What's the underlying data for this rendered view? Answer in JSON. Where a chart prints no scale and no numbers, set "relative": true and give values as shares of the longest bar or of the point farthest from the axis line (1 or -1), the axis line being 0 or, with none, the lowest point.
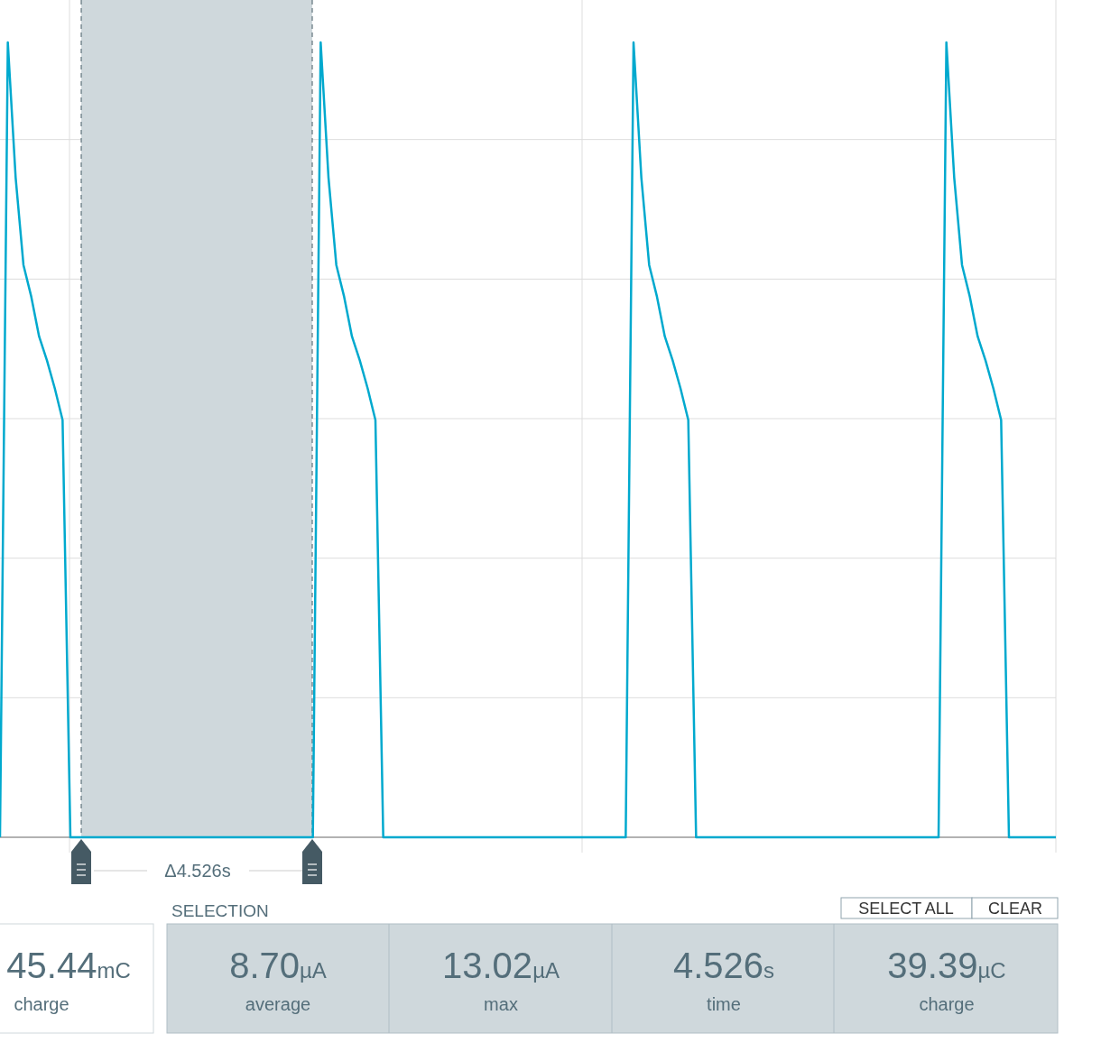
{
  "chart_data": [
    {
      "type": "line",
      "relative": true,
      "grid": true,
      "annotations": [
        "Δ4.526s"
      ],
      "categories": [
        null,
        null,
        null,
        null,
        null,
        null,
        null,
        null,
        null,
        null,
        null,
        null,
        null,
        null,
        null,
        null,
        null,
        null,
        null,
        null,
        null,
        null,
        null,
        null,
        null,
        null,
        null,
        null,
        null,
        null,
        null,
        null,
        null,
        null,
        null,
        null,
        null,
        null,
        null,
        null,
        null,
        null,
        null,
        null,
        null,
        null,
        null,
        null,
        null,
        null,
        null,
        null,
        null,
        null,
        null,
        null,
        null,
        null,
        null,
        null,
        null,
        null,
        null,
        null,
        null,
        null,
        null,
        null,
        null,
        null,
        null,
        null,
        null,
        null,
        null,
        null,
        null,
        null,
        null,
        null,
        null,
        null,
        null,
        null,
        null,
        null,
        null,
        null,
        null,
        null,
        null,
        null,
        null,
        null,
        null,
        null,
        null,
        null,
        null,
        null,
        null,
        null,
        null,
        null,
        null,
        null,
        null,
        null,
        null,
        null,
        null,
        null,
        null,
        null,
        null,
        null,
        null,
        null,
        null,
        null,
        null,
        null,
        null,
        null,
        null,
        null,
        null,
        null,
        null,
        null,
        null,
        null,
        null,
        null,
        null,
        null
      ],
      "series": [
        {
          "color": "#00a9ce",
          "values": [
            0,
            1,
            0.83,
            0.72,
            0.68,
            0.63,
            0.6,
            0.565,
            0.525,
            0,
            0,
            0,
            0,
            0,
            0,
            0,
            0,
            0,
            0,
            0,
            0,
            0,
            0,
            0,
            0,
            0,
            0,
            0,
            0,
            0,
            0,
            0,
            0,
            0,
            0,
            0,
            0,
            0,
            0,
            0,
            0,
            1,
            0.83,
            0.72,
            0.68,
            0.63,
            0.6,
            0.565,
            0.525,
            0,
            0,
            0,
            0,
            0,
            0,
            0,
            0,
            0,
            0,
            0,
            0,
            0,
            0,
            0,
            0,
            0,
            0,
            0,
            0,
            0,
            0,
            0,
            0,
            0,
            0,
            0,
            0,
            0,
            0,
            0,
            0,
            1,
            0.83,
            0.72,
            0.68,
            0.63,
            0.6,
            0.565,
            0.525,
            0,
            0,
            0,
            0,
            0,
            0,
            0,
            0,
            0,
            0,
            0,
            0,
            0,
            0,
            0,
            0,
            0,
            0,
            0,
            0,
            0,
            0,
            0,
            0,
            0,
            0,
            0,
            0,
            0,
            0,
            0,
            0,
            1,
            0.83,
            0.72,
            0.68,
            0.63,
            0.6,
            0.565,
            0.525,
            0,
            0,
            0,
            0,
            0,
            0,
            0
          ]
        }
      ]
    },
    {
      "type": "other",
      "annotations": [
        "45.44mC",
        "charge",
        "SELECTION",
        "SELECT ALL",
        "CLEAR",
        "8.70µA",
        "average",
        "13.02µA",
        "max",
        "4.526s",
        "time",
        "39.39µC",
        "charge"
      ]
    }
  ]
}
